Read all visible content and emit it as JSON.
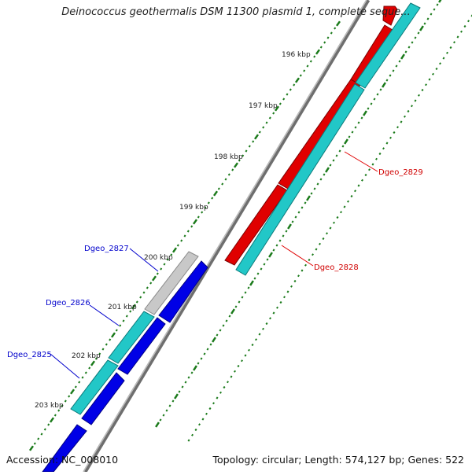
{
  "title": "Deinococcus geothermalis DSM 11300 plasmid 1, complete seque...",
  "footer": {
    "accession": "Accession: NC_008010",
    "summary": "Topology: circular; Length: 574,127 bp; Genes: 522"
  },
  "colors": {
    "forward_gene": "#e00000",
    "reverse_gene": "#0000e6",
    "cds_feature": "#22c7c7",
    "pseudo_feature": "#c8c8c8",
    "backbone": "#888888",
    "tick": "#1a7a1a",
    "label_forward": "#d00000",
    "label_reverse": "#0000cc"
  },
  "scale_labels": [
    {
      "text": "196 kbp",
      "kbp": 196
    },
    {
      "text": "197 kbp",
      "kbp": 197
    },
    {
      "text": "198 kbp",
      "kbp": 198
    },
    {
      "text": "199 kbp",
      "kbp": 199
    },
    {
      "text": "200 kbp",
      "kbp": 200
    },
    {
      "text": "201 kbp",
      "kbp": 201
    },
    {
      "text": "202 kbp",
      "kbp": 202
    },
    {
      "text": "203 kbp",
      "kbp": 203
    }
  ],
  "gene_labels": [
    {
      "text": "Dgeo_2829",
      "strand": "forward"
    },
    {
      "text": "Dgeo_2828",
      "strand": "forward"
    },
    {
      "text": "Dgeo_2827",
      "strand": "reverse"
    },
    {
      "text": "Dgeo_2826",
      "strand": "reverse"
    },
    {
      "text": "Dgeo_2825",
      "strand": "reverse"
    }
  ]
}
